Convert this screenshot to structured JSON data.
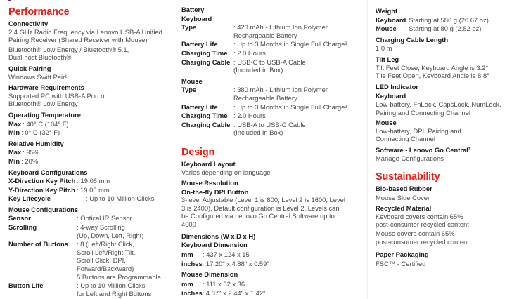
{
  "performance": {
    "title": "Performance",
    "connectivity": {
      "title": "Connectivity",
      "line1": "2.4 GHz Radio Frequency via Lenovo USB-A Unified\nPairing Receiver (Shared Receiver with Mouse)",
      "line2": "Bluetooth® Low Energy / Bluetooth® 5.1,\nDual-host Bluetooth®"
    },
    "quick_pairing": {
      "title": "Quick Pairing",
      "value": "Windows Swift Pair¹"
    },
    "hardware": {
      "title": "Hardware Requirements",
      "value": "Supported PC with USB-A Port or\nBluetooth® Low Energy"
    },
    "temperature": {
      "title": "Operating Temperature",
      "max_label": "Max",
      "max": ": 40° C (104° F)",
      "min_label": "Min",
      "min": " : 0° C (32° F)"
    },
    "humidity": {
      "title": "Relative Humidity",
      "max_label": "Max",
      "max": ": 95%",
      "min_label": "Min",
      "min": " : 20%"
    },
    "keyboard_config": {
      "title": "Keyboard Configurations",
      "rows": [
        {
          "k": "X-Direction Key Pitch",
          "v": ": 19.05 mm"
        },
        {
          "k": "Y-Direction Key Pitch",
          "v": ": 19.05 mm"
        },
        {
          "k": "Key Lifecycle",
          "v": ": Up to 10 Million Clicks"
        }
      ]
    },
    "mouse_config": {
      "title": "Mouse Configurations",
      "rows": [
        {
          "k": "Sensor",
          "v": ": Optical IR Sensor"
        },
        {
          "k": "Scrolling",
          "v": ": 4-way Scrolling\n  (Up, Down, Left, Right)"
        },
        {
          "k": "Number of Buttons",
          "v": ": 8 (Left/Right Click,\n  Scroll Left/Right Tilt,\n  Scroll Click, DPI,\n  Forward/Backward)\n  5 Buttons are Programmable"
        },
        {
          "k": "Button Life",
          "v": ": Up to 10 Million Clicks\n  for Left and Right Buttons"
        }
      ]
    }
  },
  "battery": {
    "title": "Battery",
    "keyboard": {
      "title": "Keyboard",
      "rows": [
        {
          "k": "Type",
          "v": ": 420 mAh - Lithium Ion Polymer\n  Rechargeable Battery"
        },
        {
          "k": "Battery Life",
          "v": ": Up to 3 Months in Single Full Charge²"
        },
        {
          "k": "Charging Time",
          "v": ": 2.0 Hours"
        },
        {
          "k": "Charging Cable",
          "v": ": USB-C to USB-A Cable\n  (Included in Box)"
        }
      ]
    },
    "mouse": {
      "title": "Mouse",
      "rows": [
        {
          "k": "Type",
          "v": ": 380 mAh - Lithium Ion Polymer\n  Rechargeable Battery"
        },
        {
          "k": "Battery Life",
          "v": ": Up to 3 Months in Single Full Charge²"
        },
        {
          "k": "Charging Time",
          "v": ": 2.0 Hours"
        },
        {
          "k": "Charging Cable",
          "v": ": USB-A to USB-C Cable\n  (Included in Box)"
        }
      ]
    }
  },
  "design": {
    "title": "Design",
    "layout": {
      "title": "Keyboard Layout",
      "value": "Varies depending on language"
    },
    "resolution": {
      "title": "Mouse Resolution",
      "sub": "On-the-fly DPI Button",
      "value": "3-level Adjustable (Level 1 is 800, Level 2 is 1600, Level\n3 is 2400), Default configuration is Level 2, Levels can\nbe Configured via Lenovo Go Central Software up to\n4000"
    },
    "dimensions": {
      "title": "Dimensions (W x D x H)",
      "keyboard": {
        "title": "Keyboard Dimension",
        "mm_label": "mm",
        "mm": "  : 437 x 124 x 15",
        "in_label": "inches",
        "in": " : 17.20\" x 4.88\" x 0.59\""
      },
      "mouse": {
        "title": "Mouse Dimension",
        "mm_label": "mm",
        "mm": "  : 111 x 62 x 36",
        "in_label": "inches",
        "in": " : 4.37\" x 2.44\" x 1.42\""
      }
    }
  },
  "weight": {
    "title": "Weight",
    "rows": [
      {
        "k": "Keyboard",
        "v": " : Starting at 586 g (20.67 oz)"
      },
      {
        "k": "Mouse",
        "v": " : Starting at 80 g (2.82 oz)"
      }
    ]
  },
  "cable_length": {
    "title": "Charging Cable Length",
    "value": "1.0 m"
  },
  "tilt_leg": {
    "title": "Tilt Leg",
    "value": "Tilt Feet Close, Keyboard Angle is 3.2°\nTile Feet Open, Keyboard Angle is 8.8°"
  },
  "led": {
    "title": "LED Indicator",
    "keyboard_title": "Keyboard",
    "keyboard": "Low-battery, FnLock, CapsLock, NumLock,\nPairing and Connecting Channel",
    "mouse_title": "Mouse",
    "mouse": "Low-battery, DPI, Pairing and\nConnecting Channel"
  },
  "software": {
    "title": "Software - Lenovo Go Central³",
    "value": "Manage Configurations"
  },
  "sustainability": {
    "title": "Sustainability",
    "rubber": {
      "title": "Bio-based Rubber",
      "value": "Mouse Side Cover"
    },
    "recycled": {
      "title": "Recycled Material",
      "value1": "Keyboard covers contain 65%\npost-consumer recycled content",
      "value2": "Mouse covers contain 65%\npost-consumer recycled content"
    },
    "packaging": {
      "title": "Paper Packaging",
      "value": "FSC™ - Certified"
    }
  }
}
